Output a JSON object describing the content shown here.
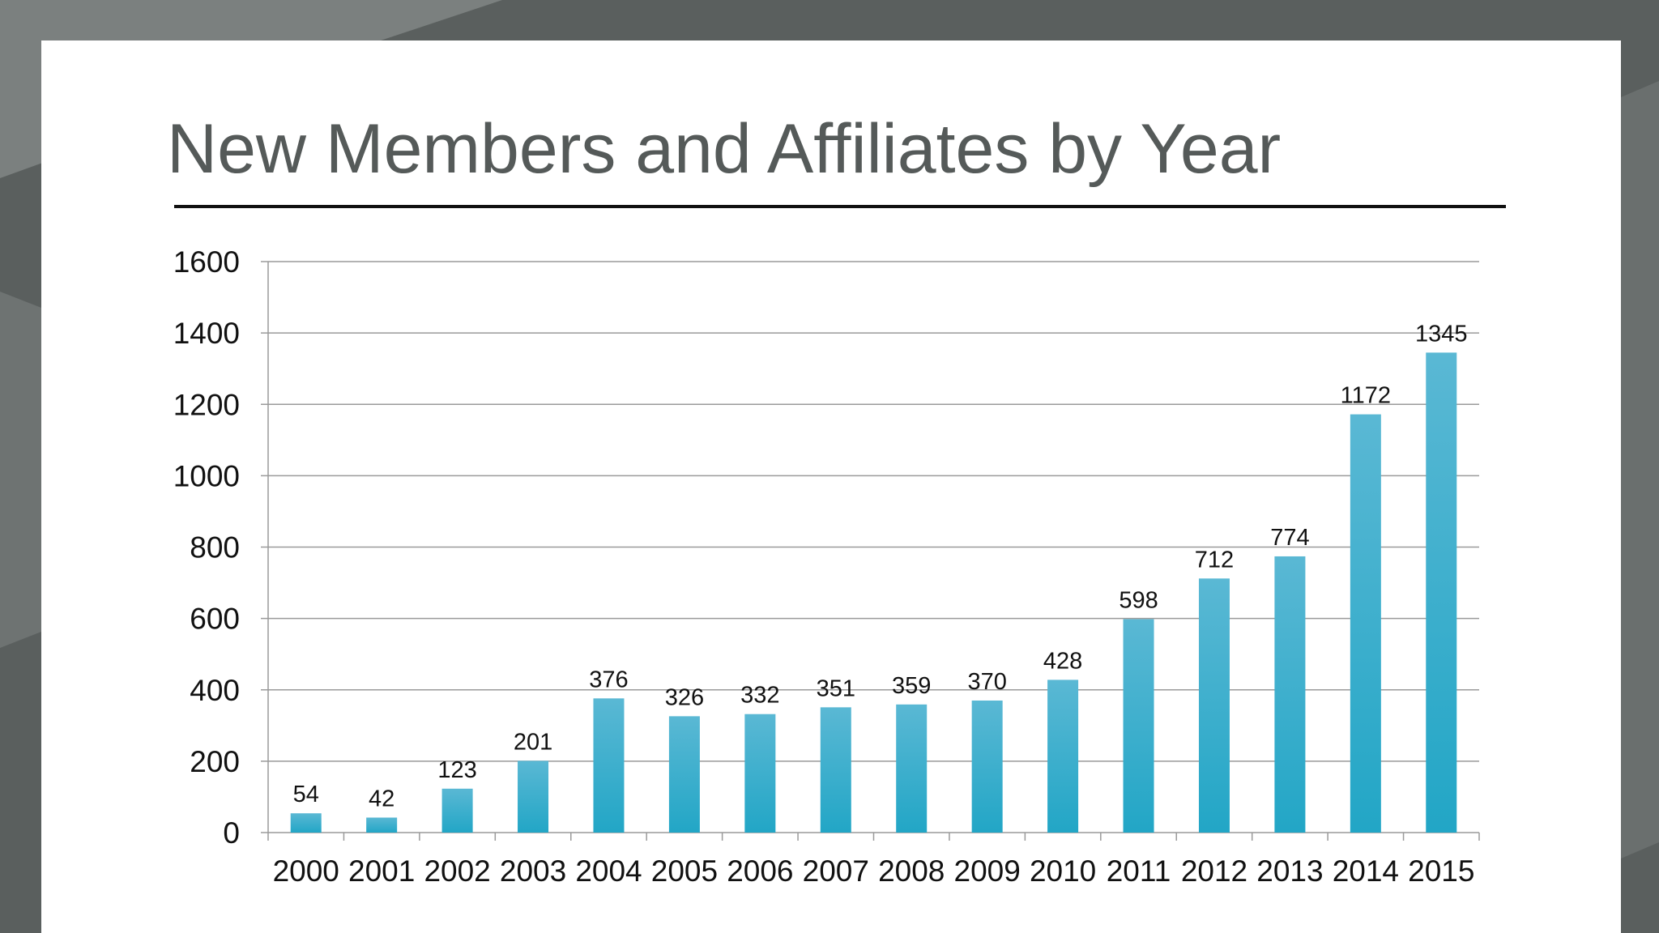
{
  "slide": {
    "title": "New Members and Affiliates by Year"
  },
  "colors": {
    "background": "#5a5f5e",
    "background_light": "#7b807f",
    "slide": "#ffffff",
    "title": "#555a59",
    "bar_top": "#5ab8d4",
    "bar_bottom": "#22a6c6",
    "gridline": "#9a9a9a"
  },
  "chart_data": {
    "type": "bar",
    "title": "",
    "xlabel": "",
    "ylabel": "",
    "categories": [
      "2000",
      "2001",
      "2002",
      "2003",
      "2004",
      "2005",
      "2006",
      "2007",
      "2008",
      "2009",
      "2010",
      "2011",
      "2012",
      "2013",
      "2014",
      "2015"
    ],
    "values": [
      54,
      42,
      123,
      201,
      376,
      326,
      332,
      351,
      359,
      370,
      428,
      598,
      712,
      774,
      1172,
      1345
    ],
    "ylim": [
      0,
      1600
    ],
    "yticks": [
      0,
      200,
      400,
      600,
      800,
      1000,
      1200,
      1400,
      1600
    ],
    "grid": true,
    "data_labels": true,
    "legend": "none"
  }
}
